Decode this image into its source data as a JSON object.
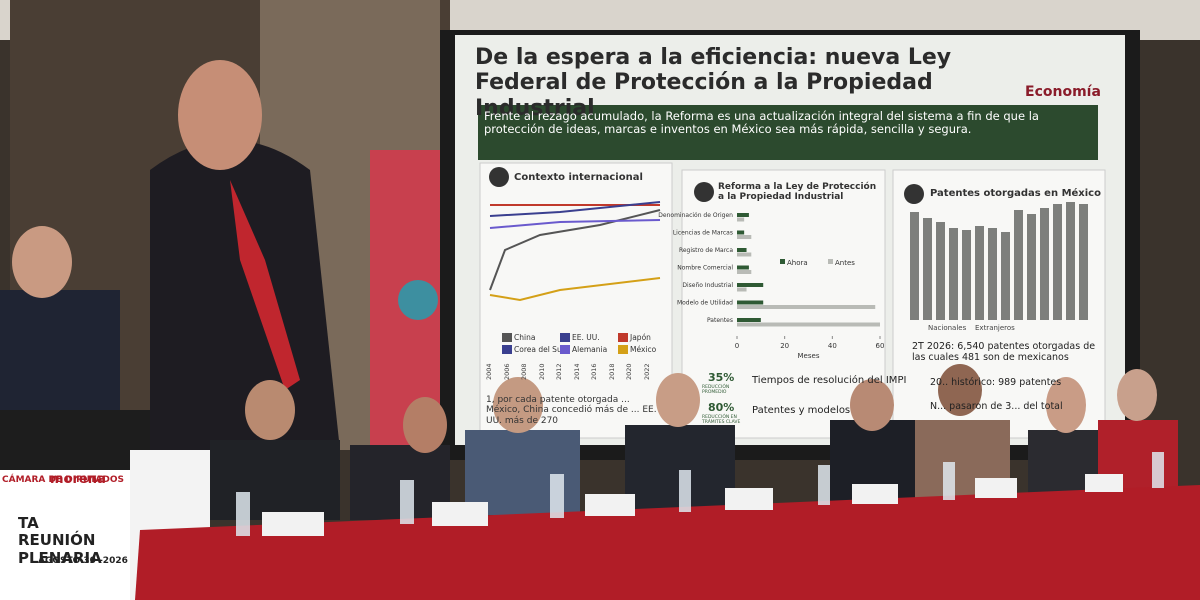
{
  "slide": {
    "title": "De la espera a la eficiencia: nueva Ley Federal de Protección a la Propiedad Industrial",
    "brand": "Economía",
    "subtitle": "Frente al rezago acumulado, la Reforma es una actualización integral del sistema a fin de que la protección de ideas, marcas e inventos en México sea más rápida, sencilla y segura.",
    "panel1": {
      "title": "Contexto internacional",
      "legend": [
        "China",
        "EE. UU.",
        "Japón",
        "Corea del Sur",
        "Alemania",
        "México"
      ],
      "years": [
        "2004",
        "2006",
        "2008",
        "2010",
        "2012",
        "2014",
        "2016",
        "2018",
        "2020",
        "2022"
      ],
      "note": "1, por cada patente otorgada ... México, China concedió más de ... EE. UU. más de 270"
    },
    "panel2": {
      "title": "Reforma a la Ley de Protección a la Propiedad Industrial",
      "categories": [
        "Denominación de Origen",
        "Licencias de Marcas",
        "Registro de Marca",
        "Nombre Comercial",
        "Diseño Industrial",
        "Modelo de Utilidad",
        "Patentes"
      ],
      "series": [
        {
          "name": "Ahora",
          "color": "#2f5a34",
          "values": [
            5,
            3,
            4,
            5,
            11,
            11,
            10
          ]
        },
        {
          "name": "Antes",
          "color": "#b9bbb6",
          "values": [
            3,
            6,
            6,
            6,
            4,
            58,
            60
          ]
        }
      ],
      "xlim": [
        0,
        60
      ],
      "xticks": [
        0,
        20,
        40,
        60
      ],
      "xlabel": "Meses",
      "stats": [
        {
          "big": "35%",
          "small": "REDUCCIÓN PROMEDIO",
          "text": "Tiempos de resolución del IMPI"
        },
        {
          "big": "80%",
          "small": "REDUCCIÓN EN TRÁMITES CLAVE",
          "text": "Patentes y modelos"
        }
      ]
    },
    "panel3": {
      "title": "Patentes otorgadas en México",
      "legend": [
        "Nacionales",
        "Extranjeros"
      ],
      "facts": [
        "2T 2026: 6,540 patentes otorgadas de las cuales 481 son de mexicanos",
        "20.. histórico: 989 patentes",
        "N... pasaron de 3... del total"
      ]
    }
  },
  "banner": {
    "chamber": "CÁMARA DE DIPUTADOS",
    "party": "morena",
    "event": "TA REUNIÓN PLENARIA",
    "date": "AGOSTO 30 -2026"
  }
}
